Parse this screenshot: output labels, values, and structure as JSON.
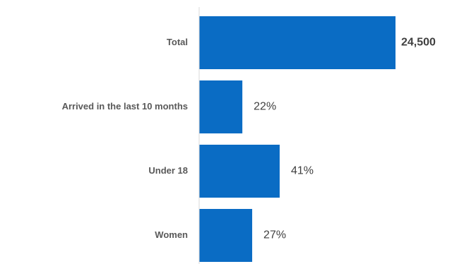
{
  "chart_data": {
    "type": "hbar",
    "categories": [
      "Total",
      "Arrived in the last 10 months",
      "Under 18",
      "Women"
    ],
    "values": [
      24500,
      5390,
      10045,
      6615
    ],
    "value_labels": [
      "24,500",
      "22%",
      "41%",
      "27%"
    ],
    "value_label_colors": [
      "#0070c0",
      "#404040",
      "#404040",
      "#404040"
    ],
    "color": "#0a6cc4",
    "xlim": [
      0,
      24500
    ]
  }
}
